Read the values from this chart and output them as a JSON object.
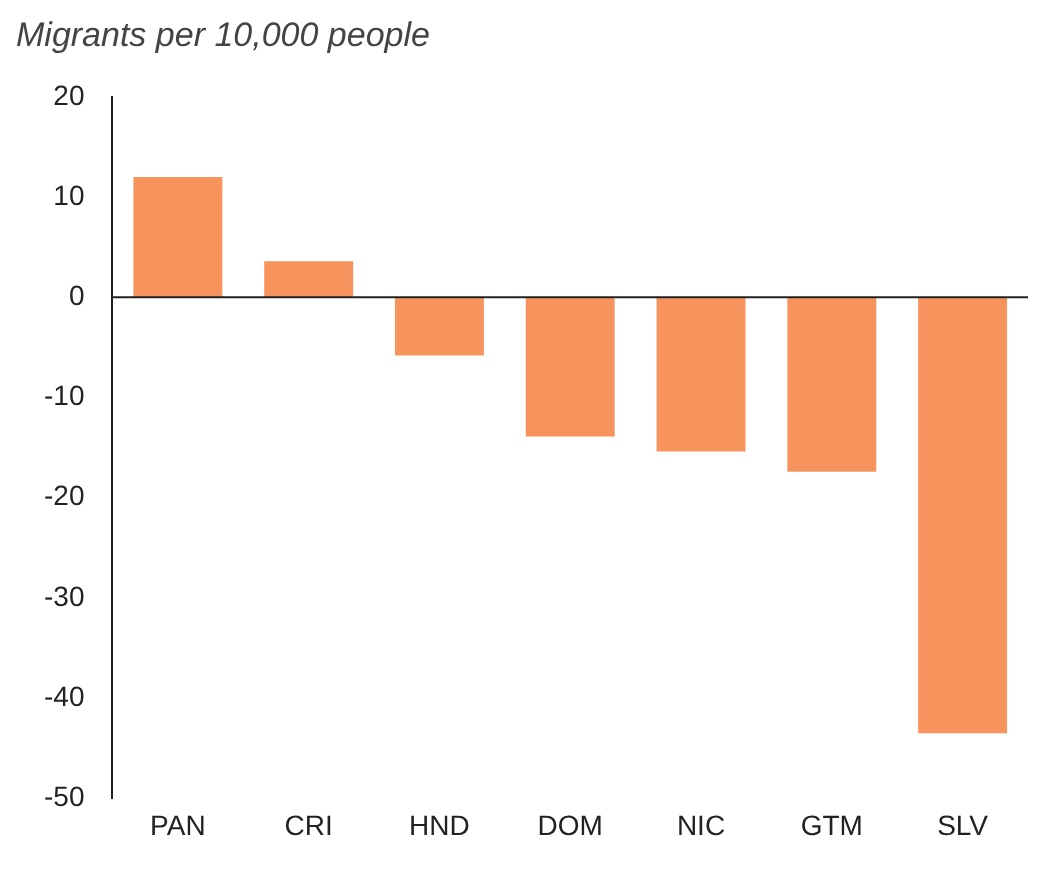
{
  "chart_data": {
    "type": "bar",
    "title": "Migrants per 10,000 people",
    "categories": [
      "PAN",
      "CRI",
      "HND",
      "DOM",
      "NIC",
      "GTM",
      "SLV"
    ],
    "values": [
      12.0,
      3.6,
      -5.8,
      -13.9,
      -15.4,
      -17.4,
      -43.5
    ],
    "color": "#f7945e",
    "ylim": [
      -50,
      20
    ],
    "yticks": [
      -50,
      -40,
      -30,
      -20,
      -10,
      0,
      10,
      20
    ],
    "ref_lines": [
      {
        "axis": "y",
        "value": 0,
        "color": "#222222"
      }
    ],
    "grid": false,
    "legend": false
  }
}
